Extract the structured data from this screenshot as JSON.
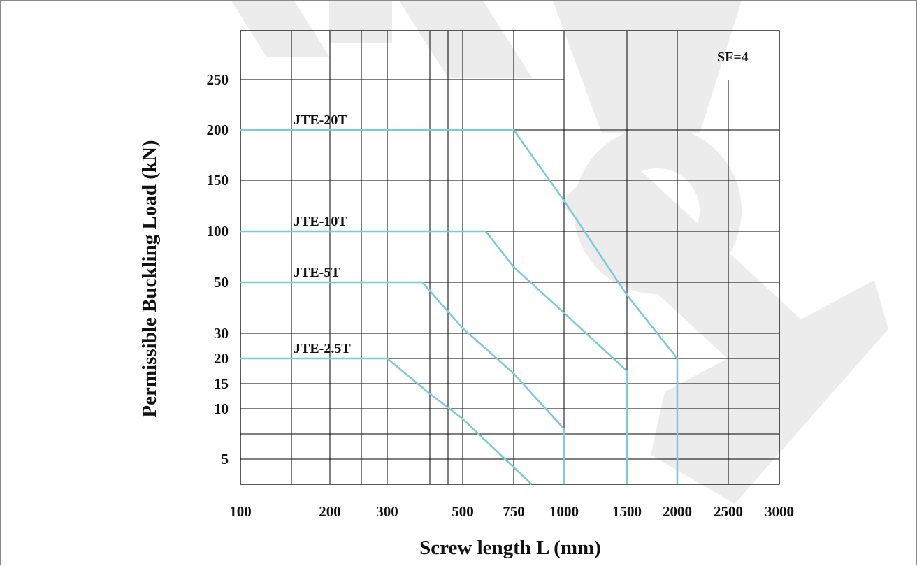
{
  "chart_data": {
    "type": "line",
    "xlabel": "Screw length L (mm)",
    "ylabel": "Permissible Buckling Load (kN)",
    "annotation": "SF=4",
    "x_ticks": [
      "100",
      "200",
      "300",
      "500",
      "750",
      "1000",
      "1500",
      "2000",
      "2500",
      "3000"
    ],
    "y_ticks": [
      "250",
      "200",
      "150",
      "100",
      "50",
      "30",
      "20",
      "15",
      "10",
      "5"
    ],
    "xlim": [
      100,
      3000
    ],
    "ylim": [
      2.5,
      280
    ],
    "grid": true,
    "line_color": "#7ccbd6",
    "series": [
      {
        "name": "JTE-20T",
        "points": [
          [
            100,
            200
          ],
          [
            750,
            200
          ],
          [
            1000,
            130
          ],
          [
            1500,
            45
          ],
          [
            2000,
            20
          ],
          [
            2000,
            2.5
          ]
        ]
      },
      {
        "name": "JTE-10T",
        "points": [
          [
            100,
            100
          ],
          [
            600,
            100
          ],
          [
            750,
            65
          ],
          [
            1000,
            38
          ],
          [
            1500,
            17.5
          ],
          [
            1500,
            2.5
          ]
        ]
      },
      {
        "name": "JTE-5T",
        "points": [
          [
            100,
            50
          ],
          [
            380,
            50
          ],
          [
            500,
            32
          ],
          [
            750,
            17
          ],
          [
            1000,
            8
          ],
          [
            1000,
            2.5
          ]
        ]
      },
      {
        "name": "JTE-2.5T",
        "points": [
          [
            100,
            20
          ],
          [
            300,
            20
          ],
          [
            400,
            13
          ],
          [
            500,
            9
          ],
          [
            830,
            2.5
          ]
        ]
      }
    ]
  }
}
